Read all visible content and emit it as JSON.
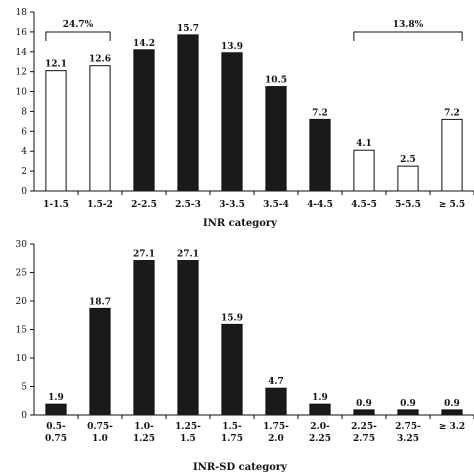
{
  "chart_data": [
    {
      "type": "bar",
      "xlabel": "INR category",
      "ylabel": "",
      "ylim": [
        0,
        18
      ],
      "yticks": [
        0,
        2,
        4,
        6,
        8,
        10,
        12,
        14,
        16,
        18
      ],
      "categories": [
        "1-1.5",
        "1.5-2",
        "2-2.5",
        "2.5-3",
        "3-3.5",
        "3.5-4",
        "4-4.5",
        "4.5-5",
        "5-5.5",
        "≥ 5.5"
      ],
      "values": [
        12.1,
        12.6,
        14.2,
        15.7,
        13.9,
        10.5,
        7.2,
        4.1,
        2.5,
        7.2
      ],
      "value_labels": [
        "12.1",
        "12.6",
        "14.2",
        "15.7",
        "13.9",
        "10.5",
        "7.2",
        "4.1",
        "2.5",
        "7.2"
      ],
      "bar_fill": [
        "white",
        "white",
        "black",
        "black",
        "black",
        "black",
        "black",
        "white",
        "white",
        "white"
      ],
      "grid": false,
      "brackets": [
        {
          "label": "24.7%",
          "from": 0,
          "to": 1
        },
        {
          "label": "13.8%",
          "from": 7,
          "to": 9
        }
      ]
    },
    {
      "type": "bar",
      "xlabel": "INR-SD category",
      "ylabel": "",
      "ylim": [
        0,
        30
      ],
      "yticks": [
        0,
        5,
        10,
        15,
        20,
        25,
        30
      ],
      "categories": [
        [
          "0.5-",
          "0.75"
        ],
        [
          "0.75-",
          "1.0"
        ],
        [
          "1.0-",
          "1.25"
        ],
        [
          "1.25-",
          "1.5"
        ],
        [
          "1.5-",
          "1.75"
        ],
        [
          "1.75-",
          "2.0"
        ],
        [
          "2.0-",
          "2.25"
        ],
        [
          "2.25-",
          "2.75"
        ],
        [
          "2.75-",
          "3.25"
        ],
        [
          "≥ 3.2",
          ""
        ]
      ],
      "values": [
        1.9,
        18.7,
        27.1,
        27.1,
        15.9,
        4.7,
        1.9,
        0.9,
        0.9,
        0.9
      ],
      "value_labels": [
        "1.9",
        "18.7",
        "27.1",
        "27.1",
        "15.9",
        "4.7",
        "1.9",
        "0.9",
        "0.9",
        "0.9"
      ],
      "bar_fill": [
        "black",
        "black",
        "black",
        "black",
        "black",
        "black",
        "black",
        "black",
        "black",
        "black"
      ],
      "grid": false
    }
  ],
  "colors": {
    "bar_dark": "#1a1a1a",
    "bar_light": "#ffffff",
    "axis": "#111111"
  }
}
